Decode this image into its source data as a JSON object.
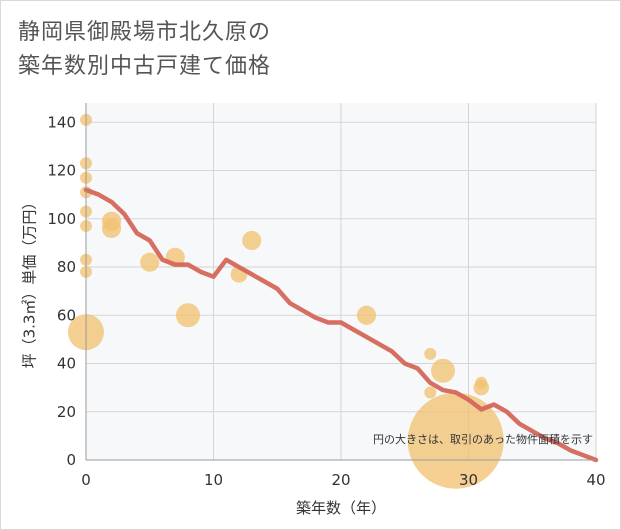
{
  "title_line1": "静岡県御殿場市北久原の",
  "title_line2": "築年数別中古戸建て価格",
  "chart_data": {
    "type": "scatter",
    "xlabel": "築年数（年）",
    "ylabel": "坪（3.3㎡）単価（万円）",
    "xlim": [
      0,
      40
    ],
    "ylim": [
      0,
      148
    ],
    "xticks": [
      0,
      10,
      20,
      30,
      40
    ],
    "yticks": [
      0,
      20,
      40,
      60,
      80,
      100,
      120,
      140
    ],
    "grid": true,
    "note": "円の大きさは、取引のあった物件面積を示す",
    "points": [
      {
        "x": 0,
        "y": 141,
        "size": 1
      },
      {
        "x": 0,
        "y": 123,
        "size": 1
      },
      {
        "x": 0,
        "y": 117,
        "size": 1
      },
      {
        "x": 0,
        "y": 111,
        "size": 1
      },
      {
        "x": 0,
        "y": 103,
        "size": 1
      },
      {
        "x": 0,
        "y": 97,
        "size": 1
      },
      {
        "x": 0,
        "y": 83,
        "size": 1
      },
      {
        "x": 0,
        "y": 78,
        "size": 1
      },
      {
        "x": 0,
        "y": 53,
        "size": 3
      },
      {
        "x": 2,
        "y": 99,
        "size": 1.6
      },
      {
        "x": 2,
        "y": 96,
        "size": 1.6
      },
      {
        "x": 5,
        "y": 82,
        "size": 1.6
      },
      {
        "x": 7,
        "y": 84,
        "size": 1.6
      },
      {
        "x": 8,
        "y": 60,
        "size": 2
      },
      {
        "x": 12,
        "y": 77,
        "size": 1.4
      },
      {
        "x": 13,
        "y": 91,
        "size": 1.6
      },
      {
        "x": 22,
        "y": 60,
        "size": 1.6
      },
      {
        "x": 27,
        "y": 44,
        "size": 1
      },
      {
        "x": 27,
        "y": 28,
        "size": 1
      },
      {
        "x": 28,
        "y": 37,
        "size": 2
      },
      {
        "x": 29,
        "y": 8,
        "size": 8
      },
      {
        "x": 31,
        "y": 32,
        "size": 1
      },
      {
        "x": 31,
        "y": 30,
        "size": 1.3
      }
    ],
    "trend": {
      "x": [
        0,
        1,
        2,
        3,
        4,
        5,
        6,
        7,
        8,
        9,
        10,
        11,
        12,
        13,
        14,
        15,
        16,
        17,
        18,
        19,
        20,
        21,
        22,
        23,
        24,
        25,
        26,
        27,
        28,
        29,
        30,
        31,
        32,
        33,
        34,
        35,
        36,
        37,
        38,
        39,
        40
      ],
      "y": [
        112,
        110,
        107,
        102,
        94,
        91,
        83,
        81,
        81,
        78,
        76,
        83,
        80,
        77,
        74,
        71,
        65,
        62,
        59,
        57,
        57,
        54,
        51,
        48,
        45,
        40,
        38,
        32,
        29,
        28,
        25,
        21,
        23,
        20,
        15,
        12,
        9,
        7,
        4,
        2,
        0
      ]
    },
    "colors": {
      "bubble": "#f2c06e",
      "trend": "#d4665a",
      "grid": "#d5d5d5",
      "plot_background": "#f7f8fa"
    }
  }
}
